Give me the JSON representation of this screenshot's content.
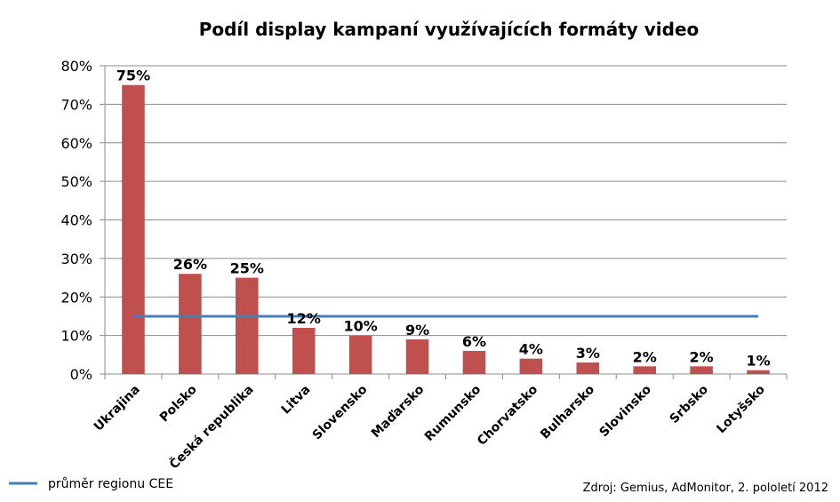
{
  "chart_data": {
    "type": "bar",
    "title": "Podíl display kampaní využívajících formáty video",
    "categories": [
      "Ukrajina",
      "Polsko",
      "Česká republika",
      "Litva",
      "Slovensko",
      "Maďarsko",
      "Rumunsko",
      "Chorvatsko",
      "Bulharsko",
      "Slovinsko",
      "Srbsko",
      "Lotyšsko"
    ],
    "series": [
      {
        "values": [
          75,
          26,
          25,
          12,
          10,
          9,
          6,
          4,
          3,
          2,
          2,
          1
        ],
        "color": "#c0504d"
      }
    ],
    "data_labels": [
      "75%",
      "26%",
      "25%",
      "12%",
      "10%",
      "9%",
      "6%",
      "4%",
      "3%",
      "2%",
      "2%",
      "1%"
    ],
    "reference_line": {
      "name": "průměr regionu CEE",
      "value": 15,
      "color": "#4a7ebb"
    },
    "yticks": [
      "0%",
      "10%",
      "20%",
      "30%",
      "40%",
      "50%",
      "60%",
      "70%",
      "80%"
    ],
    "ylim": [
      0,
      80
    ],
    "grid": true,
    "legend_position": "bottom-left",
    "source": "Zdroj: Gemius, AdMonitor, 2. pololetí 2012",
    "xlabel": "",
    "ylabel": ""
  }
}
